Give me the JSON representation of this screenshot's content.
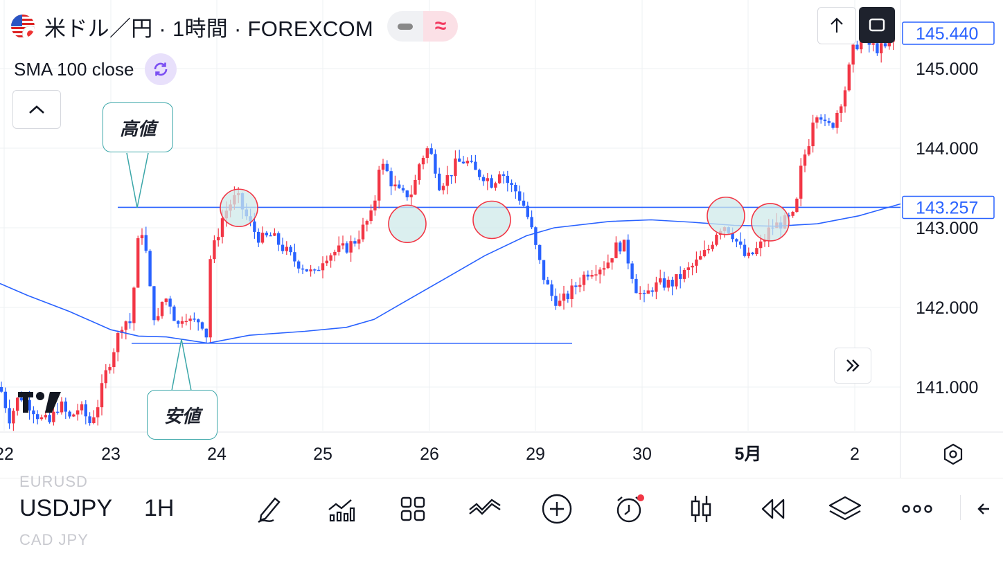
{
  "header": {
    "title": "米ドル／円 · 1時間 · FOREXCOM",
    "sma_label": "SMA 100 close"
  },
  "annotations": {
    "high_label": "高値",
    "low_label": "安値"
  },
  "price_axis": {
    "ticks": [
      "145.000",
      "144.000",
      "143.000",
      "142.000",
      "141.000"
    ],
    "current_price": "145.440",
    "line_price": "143.257"
  },
  "time_axis": {
    "ticks": [
      "22",
      "23",
      "24",
      "25",
      "26",
      "29",
      "30",
      "5月",
      "2"
    ]
  },
  "toolbar": {
    "symbol": "USDJPY",
    "timeframe": "1H",
    "ghost_above": "EURUSD",
    "ghost_below": "CAD JPY",
    "icons": [
      "pencil-icon",
      "indicators-icon",
      "templates-icon",
      "compare-icon",
      "add-icon",
      "alert-icon",
      "candles-icon",
      "replay-icon",
      "layers-icon",
      "more-icon",
      "back-icon"
    ]
  },
  "chart_data": {
    "type": "candlestick",
    "symbol": "USDJPY",
    "ylim": [
      140.45,
      145.6
    ],
    "yticks": [
      145,
      144,
      143,
      142,
      141
    ],
    "xticks": [
      "22",
      "23",
      "24",
      "25",
      "26",
      "29",
      "30",
      "5月",
      "2"
    ],
    "horizontal_lines": [
      143.257,
      141.55
    ],
    "sma_period": 100,
    "up_color": "#f23645",
    "down_color": "#2962ff",
    "sma_color": "#2962ff",
    "circle_fill": "#cfeaea",
    "circle_stroke": "#f23645",
    "keypoints": [
      [
        0,
        141.0
      ],
      [
        14,
        140.6
      ],
      [
        28,
        140.9
      ],
      [
        46,
        140.75
      ],
      [
        58,
        140.6
      ],
      [
        72,
        140.55
      ],
      [
        86,
        140.8
      ],
      [
        100,
        140.6
      ],
      [
        115,
        140.75
      ],
      [
        130,
        140.55
      ],
      [
        142,
        140.8
      ],
      [
        152,
        141.15
      ],
      [
        165,
        141.5
      ],
      [
        178,
        141.85
      ],
      [
        190,
        141.8
      ],
      [
        196,
        142.6
      ],
      [
        203,
        143.05
      ],
      [
        210,
        142.75
      ],
      [
        218,
        142.1
      ],
      [
        226,
        141.75
      ],
      [
        236,
        142.15
      ],
      [
        246,
        142.05
      ],
      [
        256,
        141.75
      ],
      [
        266,
        141.95
      ],
      [
        276,
        141.8
      ],
      [
        290,
        141.85
      ],
      [
        298,
        141.65
      ],
      [
        303,
        142.6
      ],
      [
        312,
        142.85
      ],
      [
        322,
        143.15
      ],
      [
        332,
        143.3
      ],
      [
        342,
        143.4
      ],
      [
        352,
        143.2
      ],
      [
        364,
        143.0
      ],
      [
        376,
        142.85
      ],
      [
        392,
        142.9
      ],
      [
        408,
        142.75
      ],
      [
        424,
        142.6
      ],
      [
        440,
        142.5
      ],
      [
        454,
        142.4
      ],
      [
        468,
        142.65
      ],
      [
        484,
        142.7
      ],
      [
        500,
        142.75
      ],
      [
        514,
        142.85
      ],
      [
        528,
        143.05
      ],
      [
        540,
        143.2
      ],
      [
        545,
        143.8
      ],
      [
        556,
        143.75
      ],
      [
        566,
        143.55
      ],
      [
        580,
        143.4
      ],
      [
        596,
        143.45
      ],
      [
        605,
        143.8
      ],
      [
        616,
        144.0
      ],
      [
        626,
        143.85
      ],
      [
        634,
        143.55
      ],
      [
        648,
        143.65
      ],
      [
        658,
        143.8
      ],
      [
        672,
        143.85
      ],
      [
        686,
        143.7
      ],
      [
        700,
        143.65
      ],
      [
        712,
        143.55
      ],
      [
        722,
        143.75
      ],
      [
        734,
        143.55
      ],
      [
        746,
        143.45
      ],
      [
        758,
        143.25
      ],
      [
        768,
        142.95
      ],
      [
        776,
        142.65
      ],
      [
        786,
        142.35
      ],
      [
        796,
        142.15
      ],
      [
        808,
        142.05
      ],
      [
        820,
        142.15
      ],
      [
        834,
        142.3
      ],
      [
        848,
        142.45
      ],
      [
        862,
        142.5
      ],
      [
        876,
        142.55
      ],
      [
        888,
        142.75
      ],
      [
        900,
        142.8
      ],
      [
        910,
        142.5
      ],
      [
        918,
        142.25
      ],
      [
        930,
        142.1
      ],
      [
        940,
        142.25
      ],
      [
        956,
        142.3
      ],
      [
        970,
        142.3
      ],
      [
        984,
        142.4
      ],
      [
        998,
        142.5
      ],
      [
        1010,
        142.6
      ],
      [
        1024,
        142.75
      ],
      [
        1034,
        142.95
      ],
      [
        1044,
        143.05
      ],
      [
        1056,
        142.95
      ],
      [
        1068,
        142.75
      ],
      [
        1078,
        142.6
      ],
      [
        1090,
        142.7
      ],
      [
        1100,
        142.8
      ],
      [
        1112,
        143.0
      ],
      [
        1126,
        143.05
      ],
      [
        1138,
        143.1
      ],
      [
        1148,
        143.15
      ],
      [
        1158,
        143.85
      ],
      [
        1166,
        144.0
      ],
      [
        1174,
        144.4
      ],
      [
        1182,
        144.5
      ],
      [
        1192,
        144.25
      ],
      [
        1202,
        144.3
      ],
      [
        1212,
        144.55
      ],
      [
        1222,
        144.8
      ],
      [
        1230,
        145.2
      ],
      [
        1240,
        145.35
      ],
      [
        1254,
        145.3
      ],
      [
        1268,
        145.25
      ],
      [
        1280,
        145.25
      ],
      [
        1292,
        145.4
      ],
      [
        1296,
        145.44
      ]
    ],
    "sma_points": [
      [
        0,
        142.3
      ],
      [
        40,
        142.15
      ],
      [
        100,
        141.95
      ],
      [
        160,
        141.72
      ],
      [
        200,
        141.64
      ],
      [
        240,
        141.63
      ],
      [
        300,
        141.55
      ],
      [
        360,
        141.65
      ],
      [
        440,
        141.7
      ],
      [
        500,
        141.75
      ],
      [
        540,
        141.85
      ],
      [
        580,
        142.05
      ],
      [
        640,
        142.35
      ],
      [
        700,
        142.65
      ],
      [
        760,
        142.9
      ],
      [
        800,
        143.0
      ],
      [
        880,
        143.08
      ],
      [
        940,
        143.1
      ],
      [
        1000,
        143.07
      ],
      [
        1060,
        143.03
      ],
      [
        1120,
        143.02
      ],
      [
        1180,
        143.05
      ],
      [
        1240,
        143.15
      ],
      [
        1300,
        143.3
      ]
    ],
    "circles": [
      [
        345,
        143.25
      ],
      [
        588,
        143.05
      ],
      [
        710,
        143.1
      ],
      [
        1048,
        143.15
      ],
      [
        1112,
        143.07
      ]
    ]
  }
}
